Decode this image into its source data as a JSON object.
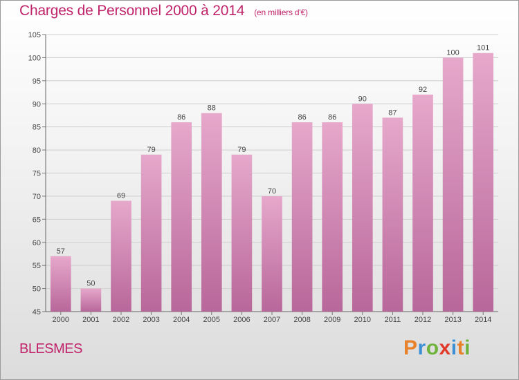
{
  "chart_data": {
    "type": "bar",
    "title": "Charges de Personnel 2000 à 2014",
    "subtitle": "(en milliers d'€)",
    "categories": [
      "2000",
      "2001",
      "2002",
      "2003",
      "2004",
      "2005",
      "2006",
      "2007",
      "2008",
      "2009",
      "2010",
      "2011",
      "2012",
      "2013",
      "2014"
    ],
    "values": [
      57,
      50,
      69,
      79,
      86,
      88,
      79,
      70,
      86,
      86,
      90,
      87,
      92,
      100,
      101
    ],
    "ylim": [
      45,
      105
    ],
    "yticks": [
      45,
      50,
      55,
      60,
      65,
      70,
      75,
      80,
      85,
      90,
      95,
      100,
      105
    ],
    "grid": true,
    "bar_color": "#d47aaa"
  },
  "place_name": "BLESMES",
  "logo": {
    "letters": [
      "P",
      "r",
      "o",
      "x",
      "i",
      "t",
      "i"
    ],
    "colors": [
      "#e8812a",
      "#3b8fd4",
      "#6fb23c",
      "#e23a2a",
      "#3b8fd4",
      "#e8812a",
      "#6fb23c"
    ]
  }
}
